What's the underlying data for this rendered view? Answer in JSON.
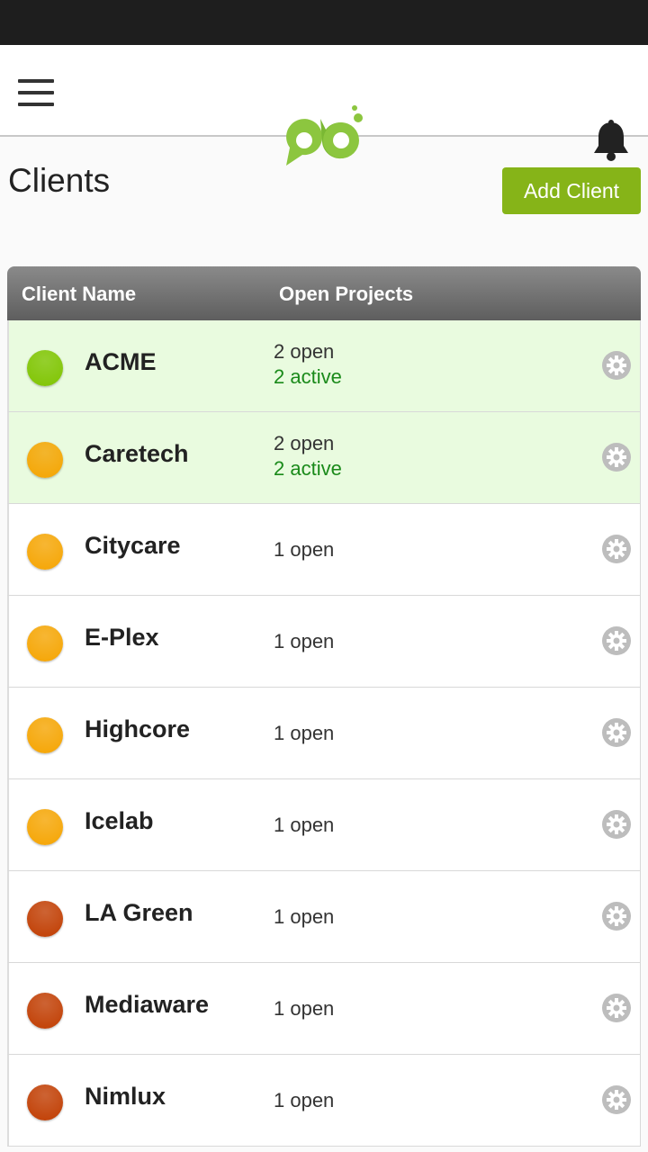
{
  "header": {
    "menu_icon": "hamburger-icon",
    "logo_icon": "pb-logo",
    "notification_icon": "bell-icon"
  },
  "page": {
    "title": "Clients",
    "add_label": "Add Client"
  },
  "table": {
    "columns": [
      "Client Name",
      "Open Projects"
    ],
    "rows": [
      {
        "name": "ACME",
        "status_color": "#7fc400",
        "open": "2 open",
        "active": "2 active",
        "highlighted": true
      },
      {
        "name": "Caretech",
        "status_color": "#f5a400",
        "open": "2 open",
        "active": "2 active",
        "highlighted": true
      },
      {
        "name": "Citycare",
        "status_color": "#f5a400",
        "open": "1 open",
        "active": null,
        "highlighted": false
      },
      {
        "name": "E-Plex",
        "status_color": "#f5a400",
        "open": "1 open",
        "active": null,
        "highlighted": false
      },
      {
        "name": "Highcore",
        "status_color": "#f5a400",
        "open": "1 open",
        "active": null,
        "highlighted": false
      },
      {
        "name": "Icelab",
        "status_color": "#f5a400",
        "open": "1 open",
        "active": null,
        "highlighted": false
      },
      {
        "name": "LA Green",
        "status_color": "#c03c00",
        "open": "1 open",
        "active": null,
        "highlighted": false
      },
      {
        "name": "Mediaware",
        "status_color": "#c03c00",
        "open": "1 open",
        "active": null,
        "highlighted": false
      },
      {
        "name": "Nimlux",
        "status_color": "#c03c00",
        "open": "1 open",
        "active": null,
        "highlighted": false
      }
    ]
  },
  "colors": {
    "accent": "#86b418"
  }
}
